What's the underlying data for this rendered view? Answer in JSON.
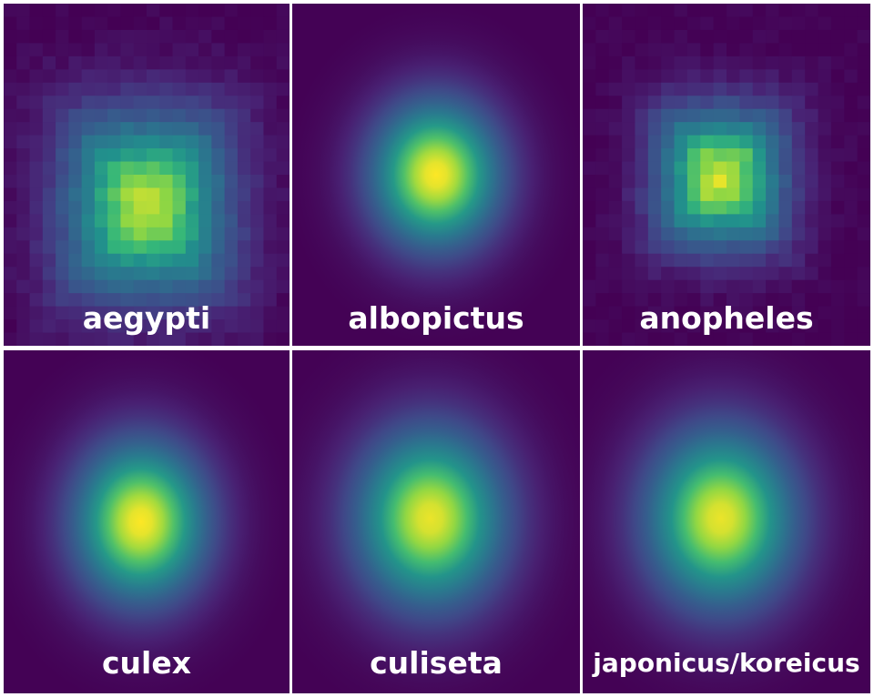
{
  "chart_data": {
    "type": "heatmap",
    "colormap": "viridis",
    "grid": false,
    "panels": [
      {
        "label": "aegypti",
        "center": [
          0.5,
          0.59
        ],
        "spread": [
          0.3,
          0.28
        ],
        "peak": 0.93,
        "pixelated": true
      },
      {
        "label": "albopictus",
        "center": [
          0.5,
          0.5
        ],
        "spread": [
          0.26,
          0.25
        ],
        "peak": 1.0,
        "pixelated": false
      },
      {
        "label": "anopheles",
        "center": [
          0.48,
          0.51
        ],
        "spread": [
          0.23,
          0.21
        ],
        "peak": 0.95,
        "pixelated": true
      },
      {
        "label": "culex",
        "center": [
          0.48,
          0.5
        ],
        "spread": [
          0.27,
          0.27
        ],
        "peak": 1.0,
        "pixelated": false
      },
      {
        "label": "culiseta",
        "center": [
          0.48,
          0.49
        ],
        "spread": [
          0.3,
          0.3
        ],
        "peak": 0.98,
        "pixelated": false
      },
      {
        "label": "japonicus/koreicus",
        "center": [
          0.48,
          0.49
        ],
        "spread": [
          0.3,
          0.3
        ],
        "peak": 0.98,
        "pixelated": false
      }
    ]
  }
}
